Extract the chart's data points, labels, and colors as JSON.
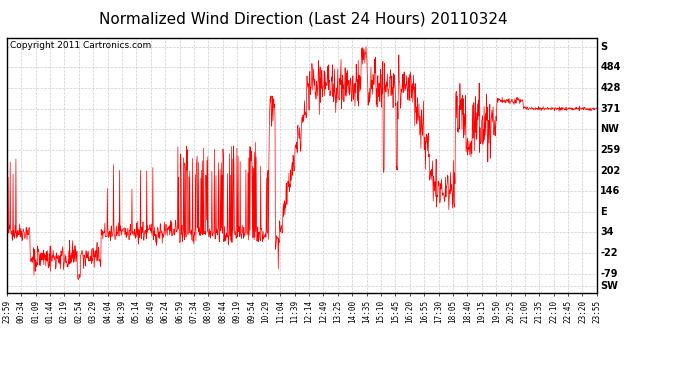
{
  "title": "Normalized Wind Direction (Last 24 Hours) 20110324",
  "copyright_text": "Copyright 2011 Cartronics.com",
  "line_color": "#FF0000",
  "background_color": "#FFFFFF",
  "plot_bg_color": "#FFFFFF",
  "grid_color": "#CCCCCC",
  "ytick_labels": [
    "SW",
    "-79",
    "-22",
    "34",
    "E",
    "146",
    "202",
    "259",
    "NW",
    "371",
    "428",
    "484",
    "S"
  ],
  "ytick_values": [
    -112,
    -79,
    -22,
    34,
    90,
    146,
    202,
    259,
    315,
    371,
    428,
    484,
    540
  ],
  "ylim": [
    -130,
    565
  ],
  "xtick_labels": [
    "23:59",
    "00:34",
    "01:09",
    "01:44",
    "02:19",
    "02:54",
    "03:29",
    "04:04",
    "04:39",
    "05:14",
    "05:49",
    "06:24",
    "06:59",
    "07:34",
    "08:09",
    "08:44",
    "09:19",
    "09:54",
    "10:29",
    "11:04",
    "11:39",
    "12:14",
    "12:49",
    "13:25",
    "14:00",
    "14:35",
    "15:10",
    "15:45",
    "16:20",
    "16:55",
    "17:30",
    "18:05",
    "18:40",
    "19:15",
    "19:50",
    "20:25",
    "21:00",
    "21:35",
    "22:10",
    "22:45",
    "23:20",
    "23:55"
  ],
  "text_color": "#000000",
  "title_fontsize": 11,
  "tick_fontsize": 7,
  "xtick_fontsize": 5.5,
  "copyright_fontsize": 6.5
}
